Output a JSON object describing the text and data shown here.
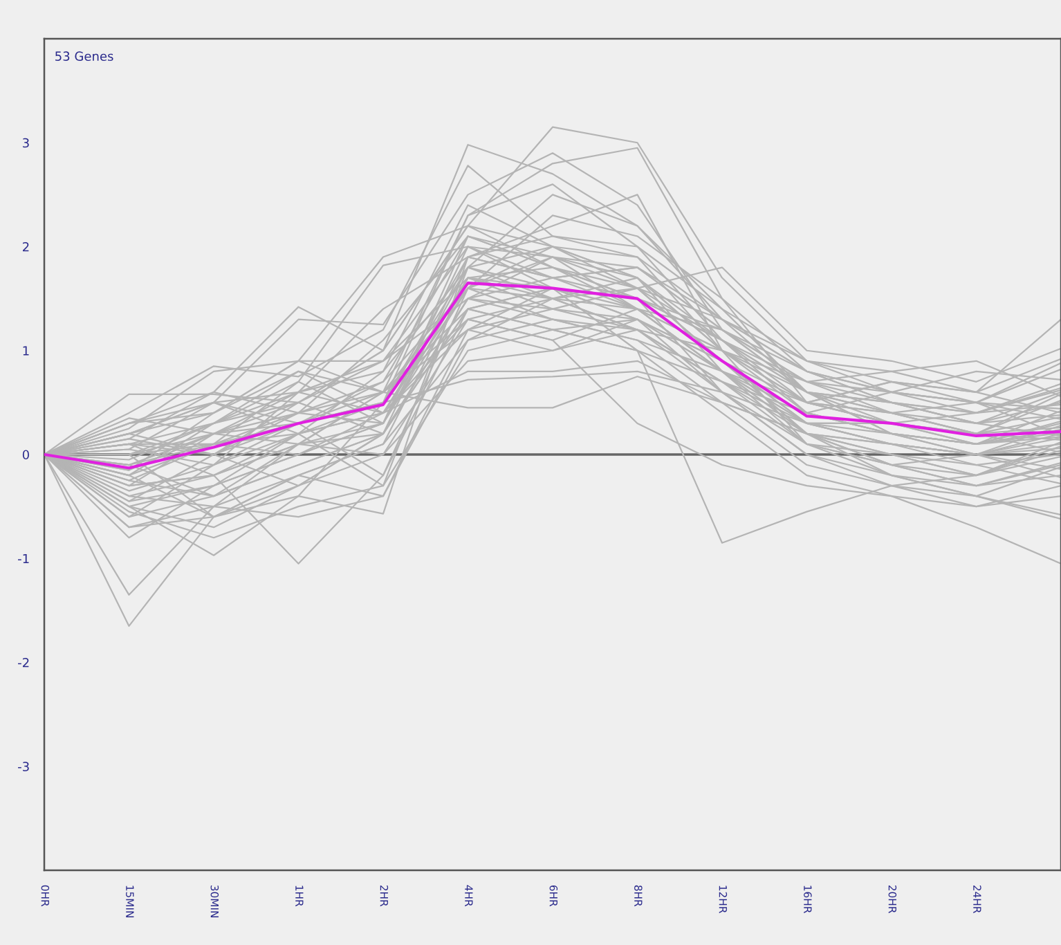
{
  "chart_data": {
    "type": "line",
    "annotations": [
      "53 Genes"
    ],
    "categories": [
      "0HR",
      "15MIN",
      "30MIN",
      "1HR",
      "2HR",
      "4HR",
      "6HR",
      "8HR",
      "12HR",
      "16HR",
      "20HR",
      "24HR",
      null
    ],
    "ylim": [
      -4,
      4
    ],
    "yticks": [
      -3,
      -2,
      -1,
      0,
      1,
      2,
      3
    ],
    "ref_lines": [
      {
        "axis": "y",
        "value": 0,
        "color": "#666666"
      }
    ],
    "series": [
      {
        "color": "#b4b4b4",
        "values": [
          0,
          -1.65,
          -0.6,
          -0.3,
          0.2,
          1.5,
          1.3,
          1.2,
          0.7,
          0.2,
          0.0,
          -0.2,
          0.12
        ]
      },
      {
        "color": "#b4b4b4",
        "values": [
          0,
          -1.35,
          -0.5,
          0.1,
          0.3,
          1.8,
          1.6,
          1.4,
          0.8,
          0.3,
          0.1,
          0.0,
          0.28
        ]
      },
      {
        "color": "#b4b4b4",
        "values": [
          0,
          0.58,
          0.58,
          0.5,
          1.0,
          2.98,
          2.7,
          2.2,
          1.3,
          0.6,
          0.5,
          0.4,
          0.62
        ]
      },
      {
        "color": "#b4b4b4",
        "values": [
          0,
          0.4,
          0.85,
          0.75,
          1.2,
          2.78,
          2.1,
          1.9,
          1.0,
          0.5,
          0.7,
          0.5,
          0.82
        ]
      },
      {
        "color": "#b4b4b4",
        "values": [
          0,
          0.3,
          0.6,
          1.42,
          1.0,
          2.2,
          3.15,
          3.0,
          1.7,
          0.9,
          0.7,
          0.6,
          1.3
        ]
      },
      {
        "color": "#b4b4b4",
        "values": [
          0,
          0.2,
          0.5,
          1.3,
          1.25,
          2.5,
          2.9,
          2.4,
          1.2,
          0.7,
          0.5,
          0.3,
          0.18
        ]
      },
      {
        "color": "#b4b4b4",
        "values": [
          0,
          -0.5,
          -0.97,
          -0.4,
          0.5,
          2.3,
          2.8,
          2.95,
          1.5,
          0.5,
          0.3,
          0.2,
          0.58
        ]
      },
      {
        "color": "#b4b4b4",
        "values": [
          0,
          -0.3,
          -0.2,
          -1.05,
          -0.2,
          1.6,
          1.9,
          1.7,
          0.8,
          0.2,
          -0.1,
          -0.3,
          -0.08
        ]
      },
      {
        "color": "#b4b4b4",
        "values": [
          0,
          -0.2,
          -0.6,
          -0.4,
          -0.57,
          1.9,
          2.2,
          2.5,
          1.0,
          0.1,
          -0.2,
          -0.4,
          -0.12
        ]
      },
      {
        "color": "#b4b4b4",
        "values": [
          0,
          0.1,
          0.3,
          0.7,
          1.82,
          2.0,
          1.9,
          1.6,
          1.3,
          0.8,
          0.6,
          0.5,
          0.88
        ]
      },
      {
        "color": "#b4b4b4",
        "values": [
          0,
          0.2,
          0.4,
          0.9,
          1.9,
          2.2,
          2.0,
          1.6,
          1.8,
          1.0,
          0.9,
          0.7,
          1.02
        ]
      },
      {
        "color": "#b4b4b4",
        "values": [
          0,
          0.0,
          0.2,
          0.4,
          0.6,
          0.45,
          0.45,
          0.75,
          0.5,
          0.2,
          0.1,
          0.0,
          -0.14
        ]
      },
      {
        "color": "#b4b4b4",
        "values": [
          0,
          -0.1,
          0.1,
          0.3,
          0.5,
          0.72,
          0.75,
          0.8,
          0.6,
          0.3,
          0.2,
          0.1,
          0.24
        ]
      },
      {
        "color": "#b4b4b4",
        "values": [
          0,
          0.3,
          0.5,
          0.6,
          0.4,
          1.2,
          1.6,
          1.0,
          -0.85,
          -0.55,
          -0.3,
          -0.4,
          -0.62
        ]
      },
      {
        "color": "#b4b4b4",
        "values": [
          0,
          -0.4,
          -0.2,
          0.1,
          0.6,
          1.3,
          1.1,
          0.3,
          -0.1,
          -0.3,
          -0.4,
          -0.7,
          -1.05
        ]
      },
      {
        "color": "#b4b4b4",
        "values": [
          0,
          -0.5,
          -0.3,
          0.2,
          0.4,
          1.6,
          1.5,
          1.7,
          1.1,
          0.4,
          0.2,
          0.1,
          0.32
        ]
      },
      {
        "color": "#b4b4b4",
        "values": [
          0,
          -0.6,
          -0.4,
          -0.1,
          0.2,
          1.4,
          1.2,
          1.3,
          0.9,
          0.3,
          0.3,
          0.2,
          0.02
        ]
      },
      {
        "color": "#b4b4b4",
        "values": [
          0,
          -0.7,
          -0.5,
          -0.2,
          0.1,
          1.7,
          1.8,
          1.5,
          0.6,
          0.0,
          -0.2,
          -0.3,
          -0.2
        ]
      },
      {
        "color": "#b4b4b4",
        "values": [
          0,
          -0.8,
          -0.3,
          0.0,
          0.3,
          2.0,
          1.7,
          1.4,
          0.8,
          0.1,
          0.0,
          -0.2,
          0.08
        ]
      },
      {
        "color": "#b4b4b4",
        "values": [
          0,
          -0.45,
          0.0,
          0.4,
          0.7,
          2.1,
          1.9,
          1.8,
          1.2,
          0.6,
          0.4,
          0.3,
          0.5
        ]
      },
      {
        "color": "#b4b4b4",
        "values": [
          0,
          -0.3,
          0.2,
          0.5,
          0.9,
          1.5,
          1.4,
          1.6,
          1.1,
          0.7,
          0.8,
          0.6,
          0.4
        ]
      },
      {
        "color": "#b4b4b4",
        "values": [
          0,
          -0.2,
          0.3,
          0.8,
          0.6,
          1.2,
          1.0,
          1.3,
          0.9,
          0.5,
          0.4,
          0.2,
          0.26
        ]
      },
      {
        "color": "#b4b4b4",
        "values": [
          0,
          0.1,
          -0.2,
          0.2,
          -0.3,
          1.8,
          2.0,
          1.9,
          1.3,
          0.8,
          0.5,
          0.4,
          0.64
        ]
      },
      {
        "color": "#b4b4b4",
        "values": [
          0,
          0.2,
          0.0,
          0.5,
          0.2,
          1.9,
          2.1,
          2.0,
          1.4,
          0.9,
          0.6,
          0.5,
          0.34
        ]
      },
      {
        "color": "#b4b4b4",
        "values": [
          0,
          -0.1,
          -0.4,
          0.1,
          0.0,
          1.3,
          1.5,
          1.2,
          0.7,
          0.3,
          0.1,
          0.0,
          -0.22
        ]
      },
      {
        "color": "#b4b4b4",
        "values": [
          0,
          0.0,
          -0.6,
          -0.2,
          0.1,
          1.1,
          1.3,
          1.1,
          0.5,
          -0.1,
          -0.3,
          -0.2,
          -0.02
        ]
      },
      {
        "color": "#b4b4b4",
        "values": [
          0,
          -0.55,
          -0.8,
          -0.5,
          -0.3,
          1.0,
          1.2,
          1.0,
          0.4,
          -0.2,
          -0.4,
          -0.5,
          -0.3
        ]
      },
      {
        "color": "#b4b4b4",
        "values": [
          0,
          -0.6,
          -0.1,
          0.3,
          -0.2,
          1.4,
          1.6,
          1.5,
          0.9,
          0.2,
          -0.1,
          0.0,
          0.16
        ]
      },
      {
        "color": "#b4b4b4",
        "values": [
          0,
          0.05,
          0.5,
          0.2,
          0.8,
          2.4,
          2.0,
          1.7,
          1.0,
          0.4,
          0.2,
          0.1,
          0.42
        ]
      },
      {
        "color": "#b4b4b4",
        "values": [
          0,
          0.15,
          0.6,
          0.4,
          1.1,
          2.1,
          1.8,
          1.5,
          1.2,
          0.6,
          0.3,
          0.2,
          0.52
        ]
      },
      {
        "color": "#b4b4b4",
        "values": [
          0,
          0.25,
          0.8,
          0.9,
          0.9,
          1.7,
          1.5,
          1.2,
          1.0,
          0.7,
          0.6,
          0.8,
          0.72
        ]
      },
      {
        "color": "#b4b4b4",
        "values": [
          0,
          0.35,
          0.2,
          0.6,
          1.4,
          1.9,
          1.7,
          1.8,
          1.3,
          0.9,
          0.8,
          0.9,
          0.56
        ]
      },
      {
        "color": "#b4b4b4",
        "values": [
          0,
          -0.25,
          0.1,
          0.7,
          0.3,
          1.6,
          2.3,
          2.1,
          1.5,
          0.8,
          0.5,
          0.3,
          0.38
        ]
      },
      {
        "color": "#b4b4b4",
        "values": [
          0,
          -0.35,
          -0.1,
          0.2,
          0.5,
          1.8,
          2.5,
          2.2,
          1.4,
          0.6,
          0.4,
          0.2,
          0.14
        ]
      },
      {
        "color": "#b4b4b4",
        "values": [
          0,
          -0.15,
          0.4,
          0.9,
          0.6,
          2.3,
          2.6,
          2.0,
          1.1,
          0.5,
          0.3,
          0.4,
          0.68
        ]
      },
      {
        "color": "#b4b4b4",
        "values": [
          0,
          0.1,
          0.0,
          -0.3,
          0.2,
          1.5,
          1.9,
          1.4,
          0.8,
          0.2,
          0.0,
          -0.1,
          -0.28
        ]
      },
      {
        "color": "#b4b4b4",
        "values": [
          0,
          -0.4,
          -0.5,
          -0.6,
          -0.4,
          1.2,
          1.4,
          1.3,
          0.6,
          0.0,
          -0.3,
          -0.5,
          -0.4
        ]
      },
      {
        "color": "#b4b4b4",
        "values": [
          0,
          -0.5,
          -0.7,
          -0.3,
          0.0,
          0.9,
          1.0,
          1.2,
          0.7,
          0.1,
          -0.1,
          -0.3,
          -0.1
        ]
      },
      {
        "color": "#b4b4b4",
        "values": [
          0,
          -0.2,
          0.1,
          0.0,
          0.4,
          1.7,
          1.6,
          1.3,
          0.8,
          0.4,
          0.2,
          0.0,
          0.2
        ]
      },
      {
        "color": "#b4b4b4",
        "values": [
          0,
          0.0,
          0.3,
          0.6,
          0.8,
          1.8,
          1.5,
          1.4,
          1.0,
          0.5,
          0.3,
          0.1,
          0.3
        ]
      },
      {
        "color": "#b4b4b4",
        "values": [
          0,
          0.1,
          0.1,
          0.4,
          0.3,
          2.1,
          1.8,
          1.6,
          0.9,
          0.3,
          0.1,
          -0.1,
          0.0
        ]
      },
      {
        "color": "#b4b4b4",
        "values": [
          0,
          -0.1,
          0.2,
          0.3,
          0.5,
          1.9,
          1.7,
          1.5,
          1.1,
          0.6,
          0.5,
          0.3,
          0.6
        ]
      },
      {
        "color": "#b4b4b4",
        "values": [
          0,
          -0.3,
          -0.2,
          0.1,
          0.6,
          1.4,
          1.2,
          1.0,
          0.7,
          0.4,
          0.6,
          0.5,
          0.19
        ]
      },
      {
        "color": "#b4b4b4",
        "values": [
          0,
          0.2,
          0.5,
          0.3,
          0.7,
          1.6,
          1.3,
          1.1,
          0.8,
          0.5,
          0.7,
          0.6,
          0.92
        ]
      },
      {
        "color": "#b4b4b4",
        "values": [
          0,
          -0.05,
          0.3,
          0.5,
          1.0,
          2.2,
          1.8,
          1.4,
          1.0,
          0.6,
          0.2,
          0.0,
          0.1
        ]
      },
      {
        "color": "#b4b4b4",
        "values": [
          0,
          0.3,
          0.4,
          0.8,
          0.4,
          1.3,
          1.1,
          1.4,
          1.2,
          0.8,
          0.6,
          0.4,
          0.48
        ]
      },
      {
        "color": "#b4b4b4",
        "values": [
          0,
          -0.7,
          -0.6,
          -0.2,
          -0.4,
          1.1,
          1.5,
          1.6,
          0.9,
          0.2,
          -0.2,
          -0.4,
          -0.58
        ]
      },
      {
        "color": "#b4b4b4",
        "values": [
          0,
          -0.45,
          -0.3,
          0.0,
          0.3,
          1.7,
          1.4,
          1.2,
          0.6,
          0.1,
          -0.1,
          -0.2,
          0.04
        ]
      },
      {
        "color": "#b4b4b4",
        "values": [
          0,
          0.05,
          -0.1,
          0.6,
          0.9,
          2.0,
          1.6,
          1.3,
          0.8,
          0.3,
          0.3,
          0.1,
          0.21
        ]
      },
      {
        "color": "#b4b4b4",
        "values": [
          0,
          -0.15,
          0.2,
          0.1,
          0.2,
          1.5,
          1.7,
          1.8,
          1.2,
          0.7,
          0.4,
          0.2,
          0.36
        ]
      },
      {
        "color": "#b4b4b4",
        "values": [
          0,
          0.15,
          0.0,
          0.3,
          0.6,
          1.6,
          2.0,
          1.7,
          1.0,
          0.5,
          0.4,
          0.5,
          0.44
        ]
      },
      {
        "color": "#b4b4b4",
        "values": [
          0,
          -0.25,
          -0.4,
          -0.1,
          0.2,
          1.4,
          1.6,
          1.5,
          1.1,
          0.6,
          0.2,
          0.1,
          0.17
        ]
      },
      {
        "color": "#b4b4b4",
        "values": [
          0,
          0.0,
          0.1,
          0.2,
          0.4,
          0.8,
          0.8,
          0.9,
          0.5,
          0.2,
          0.1,
          0.0,
          0.06
        ]
      },
      {
        "color": "#e020e0",
        "values": [
          0,
          -0.13,
          0.07,
          0.3,
          0.48,
          1.65,
          1.6,
          1.5,
          0.9,
          0.37,
          0.3,
          0.18,
          0.22
        ]
      }
    ]
  }
}
